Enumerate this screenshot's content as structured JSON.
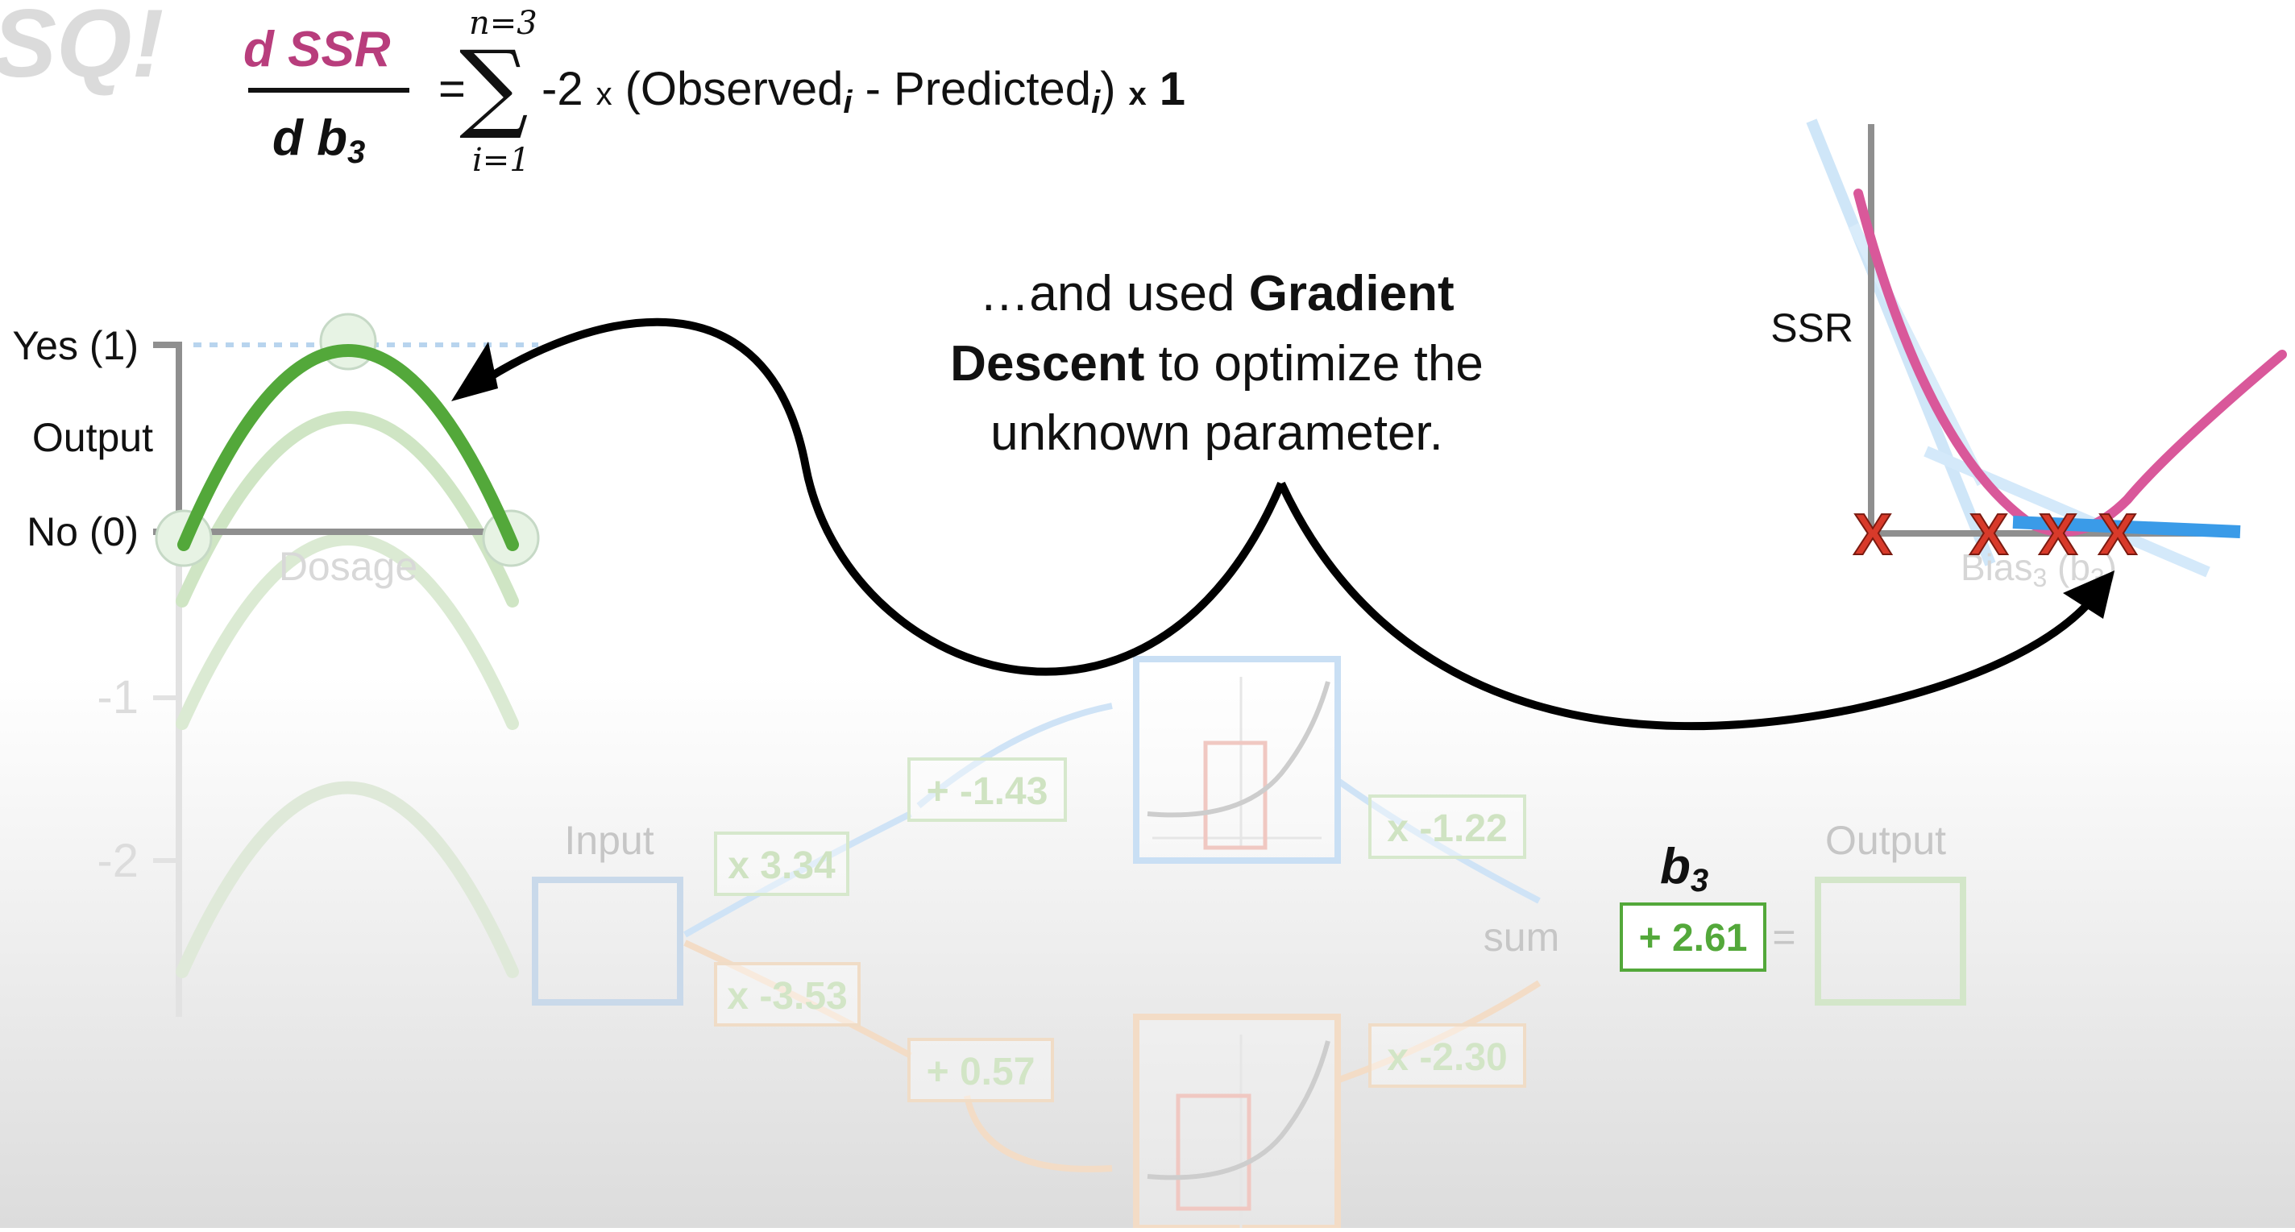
{
  "logo": {
    "text": "SQ!"
  },
  "formula": {
    "numerator": "d SSR",
    "denominator_d": "d",
    "denominator_b": "b",
    "denominator_sub": "3",
    "equals": "=",
    "sum_top": "n=3",
    "sum_bottom": "i=1",
    "term_minus2": "-2",
    "times1": "x",
    "observed": "(Observed",
    "sub_i1": "i",
    "minus": " - Predicted",
    "sub_i2": "i",
    "close": ")",
    "times2": "x",
    "one": "1"
  },
  "caption": {
    "line1_pre": "…and used ",
    "line1_bold": "Gradient",
    "line2_bold": "Descent",
    "line2_post": " to optimize the",
    "line3": "unknown parameter."
  },
  "left_plot": {
    "yes_label": "Yes (1)",
    "output_label": "Output",
    "no_label": "No (0)",
    "dosage_label": "Dosage",
    "tick_minus1": "-1",
    "tick_minus2": "-2"
  },
  "ssr_plot": {
    "ylabel": "SSR",
    "xlabel": "Bias",
    "xlabel_sub": "3",
    "xlabel_paren": " (b",
    "xlabel_paren_sub": "3",
    "xlabel_close": ")"
  },
  "network": {
    "input_label": "Input",
    "w1": "x 3.34",
    "w2": "x -3.53",
    "b1": "+ -1.43",
    "b2": "+ 0.57",
    "w3": "x -1.22",
    "w4": "x -2.30",
    "sum_label": "sum",
    "b3_label": "b",
    "b3_sub": "3",
    "b3_value": "+ 2.61",
    "equals": "=",
    "output_label": "Output"
  },
  "colors": {
    "magenta": "#b83d7c",
    "green": "#53a83a",
    "green_light": "#b9dcaa",
    "blue_faint": "#c9ddf2",
    "orange_faint": "#f1d2b4",
    "red_x": "#d83a2a",
    "ssr_curve": "#d9589a",
    "ssr_tangent": "#3a9be8"
  }
}
